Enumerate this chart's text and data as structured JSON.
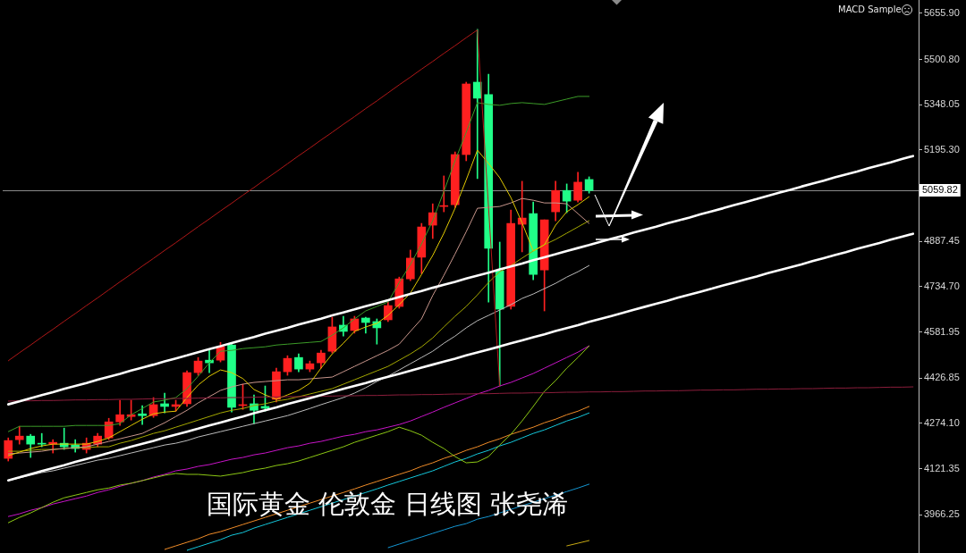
{
  "chart_data": {
    "type": "candlestick",
    "categories": [
      null,
      null,
      null,
      null,
      null,
      null,
      null,
      null,
      null,
      null,
      null,
      null,
      null,
      null,
      null,
      null,
      null,
      null,
      null,
      null,
      null,
      null,
      null,
      null,
      null,
      null,
      null,
      null,
      null,
      null,
      null,
      null,
      null,
      null,
      null,
      null,
      null,
      null,
      null,
      null,
      null,
      null,
      null,
      null,
      null,
      null,
      null,
      null,
      null,
      null,
      null,
      null,
      null,
      null,
      null,
      null,
      null,
      null,
      null,
      null,
      null,
      null,
      null,
      null,
      null,
      null,
      null,
      null,
      null,
      null,
      null,
      null,
      null,
      null,
      null,
      null,
      null,
      null,
      null,
      null,
      null,
      null
    ],
    "ohlc": [
      [
        4156,
        4225,
        4147,
        4216
      ],
      [
        4219,
        4264,
        4204,
        4231
      ],
      [
        4231,
        4237,
        4159,
        4204
      ],
      [
        4207,
        4240,
        4195,
        4204
      ],
      [
        4204,
        4219,
        4174,
        4210
      ],
      [
        4207,
        4258,
        4186,
        4195
      ],
      [
        4201,
        4219,
        4177,
        4189
      ],
      [
        4186,
        4225,
        4174,
        4207
      ],
      [
        4204,
        4240,
        4195,
        4231
      ],
      [
        4225,
        4291,
        4219,
        4279
      ],
      [
        4279,
        4352,
        4267,
        4303
      ],
      [
        4297,
        4352,
        4285,
        4303
      ],
      [
        4306,
        4334,
        4270,
        4300
      ],
      [
        4300,
        4361,
        4294,
        4337
      ],
      [
        4340,
        4376,
        4309,
        4331
      ],
      [
        4331,
        4352,
        4315,
        4337
      ],
      [
        4340,
        4451,
        4331,
        4445
      ],
      [
        4445,
        4496,
        4436,
        4484
      ],
      [
        4487,
        4520,
        4445,
        4478
      ],
      [
        4487,
        4547,
        4481,
        4532
      ],
      [
        4538,
        4544,
        4312,
        4328
      ],
      [
        4334,
        4406,
        4321,
        4337
      ],
      [
        4340,
        4370,
        4273,
        4318
      ],
      [
        4331,
        4400,
        4315,
        4325
      ],
      [
        4355,
        4460,
        4346,
        4448
      ],
      [
        4448,
        4502,
        4436,
        4493
      ],
      [
        4496,
        4508,
        4448,
        4457
      ],
      [
        4457,
        4484,
        4448,
        4475
      ],
      [
        4478,
        4520,
        4460,
        4511
      ],
      [
        4517,
        4632,
        4511,
        4599
      ],
      [
        4605,
        4635,
        4568,
        4584
      ],
      [
        4587,
        4635,
        4578,
        4626
      ],
      [
        4629,
        4632,
        4578,
        4614
      ],
      [
        4617,
        4626,
        4541,
        4596
      ],
      [
        4623,
        4683,
        4617,
        4671
      ],
      [
        4668,
        4767,
        4662,
        4761
      ],
      [
        4761,
        4858,
        4755,
        4831
      ],
      [
        4834,
        4948,
        4779,
        4936
      ],
      [
        4942,
        5014,
        4897,
        4984
      ],
      [
        5005,
        5108,
        4987,
        5008
      ],
      [
        5011,
        5189,
        5002,
        5180
      ],
      [
        5180,
        5424,
        5159,
        5418
      ],
      [
        5424,
        5602,
        5099,
        5370
      ],
      [
        5382,
        5451,
        4683,
        4864
      ],
      [
        4788,
        4885,
        4400,
        4659
      ],
      [
        4668,
        4993,
        4659,
        4948
      ],
      [
        4945,
        5090,
        4852,
        4966
      ],
      [
        4981,
        5020,
        4758,
        4776
      ],
      [
        4791,
        4960,
        4653,
        4960
      ],
      [
        4987,
        5090,
        4957,
        5059
      ],
      [
        5059,
        5081,
        4984,
        5023
      ],
      [
        5026,
        5120,
        5020,
        5087
      ],
      [
        5096,
        5105,
        5050,
        5059
      ],
      null,
      null,
      null,
      null,
      null,
      null,
      null,
      null,
      null,
      null,
      null,
      null,
      null,
      null,
      null,
      null,
      null,
      null,
      null,
      null,
      null,
      null,
      null,
      null,
      null,
      null,
      null,
      null,
      null
    ],
    "colors": [
      "#ff2020",
      "#ff2020",
      "#20ff88",
      "#20ff88",
      "#ff2020",
      "#20ff88",
      "#20ff88",
      "#ff2020",
      "#ff2020",
      "#ff2020",
      "#ff2020",
      "#ff2020",
      "#20ff88",
      "#ff2020",
      "#20ff88",
      "#ff2020",
      "#ff2020",
      "#ff2020",
      "#20ff88",
      "#ff2020",
      "#20ff88",
      "#ff2020",
      "#20ff88",
      "#20ff88",
      "#ff2020",
      "#ff2020",
      "#20ff88",
      "#ff2020",
      "#ff2020",
      "#ff2020",
      "#20ff88",
      "#ff2020",
      "#20ff88",
      "#20ff88",
      "#ff2020",
      "#ff2020",
      "#ff2020",
      "#ff2020",
      "#ff2020",
      "#ff2020",
      "#ff2020",
      "#ff2020",
      "#20ff88",
      "#20ff88",
      "#20ff88",
      "#ff2020",
      "#ff2020",
      "#20ff88",
      "#ff2020",
      "#ff2020",
      "#20ff88",
      "#ff2020",
      "#20ff88",
      null,
      null,
      null,
      null,
      null,
      null,
      null,
      null,
      null,
      null,
      null,
      null,
      null,
      null,
      null,
      null,
      null,
      null,
      null,
      null,
      null,
      null,
      null,
      null,
      null,
      null,
      null,
      null,
      null
    ],
    "series": [
      {
        "type": "line",
        "color": "#f08c28",
        "values": [
          null,
          null,
          null,
          null,
          null,
          null,
          null,
          null,
          null,
          null,
          null,
          null,
          null,
          null,
          3849,
          3861,
          3873,
          3885,
          3900,
          3909,
          3921,
          3933,
          3945,
          3957,
          3969,
          3981,
          3993,
          4005,
          4017,
          4029,
          4041,
          4053,
          4066,
          4078,
          4090,
          4102,
          4114,
          4129,
          4141,
          4156,
          4168,
          4183,
          4195,
          4210,
          4222,
          4237,
          4249,
          4261,
          4276,
          4288,
          4303,
          4315,
          4331,
          null,
          null,
          null,
          null,
          null,
          null,
          null,
          null,
          null,
          null,
          null,
          null,
          null,
          null,
          null,
          null,
          null,
          null,
          null,
          null,
          null,
          null,
          null,
          null,
          null,
          null,
          null,
          null,
          null
        ]
      },
      {
        "type": "line",
        "color": "#14c8dc",
        "values": [
          null,
          null,
          null,
          null,
          null,
          null,
          null,
          null,
          null,
          null,
          null,
          null,
          null,
          null,
          null,
          null,
          3846,
          3858,
          3870,
          3882,
          3897,
          3906,
          3921,
          3933,
          3945,
          3957,
          3969,
          3981,
          3993,
          4005,
          4017,
          4029,
          4041,
          4053,
          4066,
          4078,
          4090,
          4102,
          4114,
          4129,
          4144,
          4156,
          4171,
          4183,
          4198,
          4210,
          4225,
          4240,
          4252,
          4267,
          4282,
          4294,
          4309,
          null,
          null,
          null,
          null,
          null,
          null,
          null,
          null,
          null,
          null,
          null,
          null,
          null,
          null,
          null,
          null,
          null,
          null,
          null,
          null,
          null,
          null,
          null,
          null,
          null,
          null,
          null,
          null,
          null
        ]
      },
      {
        "type": "line",
        "color": "#1496d2",
        "values": [
          null,
          null,
          null,
          null,
          null,
          null,
          null,
          null,
          null,
          null,
          null,
          null,
          null,
          null,
          null,
          null,
          null,
          null,
          null,
          null,
          null,
          null,
          null,
          null,
          null,
          null,
          null,
          null,
          null,
          null,
          null,
          null,
          null,
          null,
          3855,
          3867,
          3879,
          3891,
          3903,
          3915,
          3927,
          3936,
          3951,
          3960,
          3972,
          3984,
          3996,
          4008,
          4020,
          4032,
          4044,
          4056,
          4069,
          null,
          null,
          null,
          null,
          null,
          null,
          null,
          null,
          null,
          null,
          null,
          null,
          null,
          null,
          null,
          null,
          null,
          null,
          null,
          null,
          null,
          null,
          null,
          null,
          null,
          null,
          null,
          null,
          null
        ]
      },
      {
        "type": "line",
        "color": "#c8aa14",
        "values": [
          null,
          null,
          null,
          null,
          null,
          null,
          null,
          null,
          null,
          null,
          null,
          null,
          null,
          null,
          null,
          null,
          null,
          null,
          null,
          null,
          null,
          null,
          null,
          null,
          null,
          null,
          null,
          null,
          null,
          null,
          null,
          null,
          null,
          null,
          null,
          null,
          null,
          null,
          null,
          null,
          null,
          null,
          null,
          null,
          null,
          null,
          null,
          null,
          null,
          null,
          3861,
          3870,
          3879,
          null,
          null,
          null,
          null,
          null,
          null,
          null,
          null,
          null,
          null,
          null,
          null,
          null,
          null,
          null,
          null,
          null,
          null,
          null,
          null,
          null,
          null,
          null,
          null,
          null,
          null,
          null,
          null,
          null
        ]
      },
      {
        "type": "line",
        "color": "#c814c8",
        "values": [
          3960,
          3969,
          3981,
          3990,
          4002,
          4011,
          4020,
          4029,
          4041,
          4050,
          4062,
          4072,
          4081,
          4093,
          4102,
          4114,
          4120,
          4129,
          4135,
          4144,
          4153,
          4159,
          4168,
          4174,
          4183,
          4192,
          4198,
          4207,
          4213,
          4222,
          4231,
          4237,
          4246,
          4252,
          4261,
          4270,
          4282,
          4297,
          4312,
          4328,
          4343,
          4358,
          4373,
          4385,
          4400,
          4412,
          4427,
          4442,
          4460,
          4478,
          4496,
          4514,
          4535,
          null,
          null,
          null,
          null,
          null,
          null,
          null,
          null,
          null,
          null,
          null,
          null,
          null,
          null,
          null,
          null,
          null,
          null,
          null,
          null,
          null,
          null,
          null,
          null,
          null,
          null,
          null,
          null,
          null
        ]
      },
      {
        "type": "line",
        "color": "#bcbcbc",
        "values": [
          4081,
          4090,
          4099,
          4108,
          4114,
          4123,
          4132,
          4141,
          4150,
          4156,
          4165,
          4174,
          4183,
          4192,
          4201,
          4207,
          4216,
          4228,
          4237,
          4246,
          4255,
          4264,
          4273,
          4282,
          4291,
          4300,
          4312,
          4324,
          4337,
          4349,
          4361,
          4376,
          4394,
          4415,
          4433,
          4454,
          4475,
          4496,
          4517,
          4544,
          4568,
          4596,
          4620,
          4638,
          4656,
          4674,
          4695,
          4710,
          4728,
          4746,
          4767,
          4785,
          4806,
          null,
          null,
          null,
          null,
          null,
          null,
          null,
          null,
          null,
          null,
          null,
          null,
          null,
          null,
          null,
          null,
          null,
          null,
          null,
          null,
          null,
          null,
          null,
          null,
          null,
          null,
          null,
          null,
          null
        ]
      },
      {
        "type": "line",
        "color": "#8cc814",
        "values": [
          3939,
          3957,
          3972,
          3990,
          4008,
          4023,
          4032,
          4041,
          4050,
          4056,
          4066,
          4072,
          4081,
          4090,
          4099,
          4105,
          4102,
          4102,
          4099,
          4096,
          4102,
          4108,
          4117,
          4123,
          4132,
          4138,
          4147,
          4159,
          4171,
          4183,
          4195,
          4210,
          4222,
          4234,
          4246,
          4261,
          4249,
          4234,
          4210,
          4189,
          4162,
          4141,
          4144,
          4162,
          4201,
          4237,
          4282,
          4331,
          4382,
          4418,
          4460,
          4496,
          4535,
          null,
          null,
          null,
          null,
          null,
          null,
          null,
          null,
          null,
          null,
          null,
          null,
          null,
          null,
          null,
          null,
          null,
          null,
          null,
          null,
          null,
          null,
          null,
          null,
          null,
          null,
          null,
          null,
          null
        ]
      },
      {
        "type": "line",
        "color": "#3c9c28",
        "values": [
          4246,
          4264,
          4264,
          4264,
          4264,
          4264,
          4267,
          4267,
          4267,
          4267,
          4273,
          4303,
          4324,
          4346,
          4352,
          4361,
          4391,
          4433,
          4478,
          4517,
          4520,
          4526,
          4529,
          4532,
          4538,
          4541,
          4544,
          4547,
          4550,
          4571,
          4596,
          4626,
          4653,
          4668,
          4683,
          4749,
          4809,
          4879,
          4957,
          5056,
          5159,
          5255,
          5355,
          5349,
          5346,
          5352,
          5355,
          5352,
          5349,
          5358,
          5367,
          5376,
          5376,
          null,
          null,
          null,
          null,
          null,
          null,
          null,
          null,
          null,
          null,
          null,
          null,
          null,
          null,
          null,
          null,
          null,
          null,
          null,
          null,
          null,
          null,
          null,
          null,
          null,
          null,
          null,
          null,
          null
        ]
      },
      {
        "type": "line",
        "color": "#a4a800",
        "values": [
          4180,
          4180,
          4183,
          4186,
          4186,
          4189,
          4192,
          4192,
          4195,
          4195,
          4207,
          4216,
          4228,
          4240,
          4249,
          4261,
          4273,
          4285,
          4297,
          4309,
          4318,
          4324,
          4334,
          4340,
          4349,
          4355,
          4364,
          4373,
          4382,
          4391,
          4406,
          4421,
          4436,
          4451,
          4466,
          4487,
          4508,
          4532,
          4562,
          4599,
          4635,
          4668,
          4707,
          4749,
          4785,
          4806,
          4831,
          4855,
          4876,
          4894,
          4915,
          4936,
          4957,
          null,
          null,
          null,
          null,
          null,
          null,
          null,
          null,
          null,
          null,
          null,
          null,
          null,
          null,
          null,
          null,
          null,
          null,
          null,
          null,
          null,
          null,
          null,
          null,
          null,
          null,
          null,
          null,
          null
        ]
      },
      {
        "type": "line",
        "color": "#c8968c",
        "values": [
          4171,
          4174,
          4177,
          4180,
          4186,
          4189,
          4192,
          4195,
          4204,
          4213,
          4222,
          4231,
          4240,
          4258,
          4276,
          4297,
          4318,
          4343,
          4364,
          4385,
          4397,
          4406,
          4412,
          4415,
          4418,
          4421,
          4421,
          4424,
          4427,
          4430,
          4448,
          4466,
          4484,
          4502,
          4520,
          4541,
          4584,
          4626,
          4705,
          4773,
          4845,
          4920,
          4999,
          5002,
          5005,
          5017,
          5032,
          5026,
          5017,
          5017,
          5014,
          4981,
          4948,
          null,
          null,
          null,
          null,
          null,
          null,
          null,
          null,
          null,
          null,
          null,
          null,
          null,
          null,
          null,
          null,
          null,
          null,
          null,
          null,
          null,
          null,
          null,
          null,
          null,
          null,
          null,
          null,
          null
        ]
      },
      {
        "type": "line",
        "color": "#e0c800",
        "values": [
          4165,
          4177,
          4189,
          4198,
          4204,
          4204,
          4204,
          4204,
          4213,
          4225,
          4246,
          4267,
          4288,
          4306,
          4312,
          4315,
          4361,
          4403,
          4433,
          4454,
          4445,
          4425,
          4388,
          4370,
          4355,
          4370,
          4385,
          4409,
          4460,
          4508,
          4544,
          4584,
          4599,
          4611,
          4638,
          4674,
          4713,
          4776,
          4840,
          4915,
          4999,
          5095,
          5195,
          5150,
          5102,
          5035,
          4950,
          4855,
          4876,
          4942,
          4987,
          5011,
          5038,
          null,
          null,
          null,
          null,
          null,
          null,
          null,
          null,
          null,
          null,
          null,
          null,
          null,
          null,
          null,
          null,
          null,
          null,
          null,
          null,
          null,
          null,
          null,
          null,
          null,
          null,
          null,
          null,
          null
        ]
      },
      {
        "type": "line",
        "color": "#8c1e3c",
        "values": [
          4349,
          4350,
          4350,
          4351,
          4351,
          4352,
          4353,
          4353,
          4354,
          4354,
          4355,
          4355,
          4356,
          4357,
          4357,
          4358,
          4358,
          4359,
          4360,
          4360,
          4361,
          4361,
          4362,
          4363,
          4363,
          4364,
          4364,
          4365,
          4366,
          4366,
          4367,
          4367,
          4368,
          4368,
          4369,
          4370,
          4370,
          4371,
          4371,
          4372,
          4373,
          4373,
          4374,
          4374,
          4375,
          4376,
          4376,
          4377,
          4377,
          4378,
          4379,
          4379,
          4380,
          4380,
          4381,
          4381,
          4382,
          4383,
          4383,
          4384,
          4384,
          4385,
          4386,
          4386,
          4387,
          4387,
          4388,
          4389,
          4389,
          4390,
          4390,
          4391,
          4391,
          4392,
          4393,
          4393,
          4394,
          4394,
          4395,
          4396,
          4396,
          4397
        ]
      },
      {
        "type": "line",
        "color": "#b01818",
        "values": [
          4485,
          4512,
          4538,
          4565,
          4591,
          4618,
          4644,
          4671,
          4697,
          4724,
          4751,
          4777,
          4804,
          4830,
          4857,
          4883,
          4910,
          4937,
          4963,
          4990,
          5016,
          5043,
          5069,
          5096,
          5122,
          5149,
          5176,
          5202,
          5229,
          5255,
          5282,
          5308,
          5335,
          5361,
          5388,
          5415,
          5441,
          5468,
          5494,
          5521,
          5547,
          5574,
          5600,
          5000,
          4400,
          null,
          null,
          null,
          null,
          null,
          null,
          null,
          null,
          null,
          null,
          null,
          null,
          null,
          null,
          null,
          null,
          null,
          null,
          null,
          null,
          null,
          null,
          null,
          null,
          null,
          null,
          null,
          null,
          null,
          null,
          null,
          null,
          null,
          null,
          null,
          null,
          null
        ]
      },
      {
        "type": "line",
        "color": "#ffffff",
        "values": [
          4338,
          4348,
          4359,
          4369,
          4379,
          4390,
          4400,
          4410,
          4421,
          4431,
          4441,
          4452,
          4462,
          4472,
          4483,
          4493,
          4503,
          4514,
          4524,
          4534,
          4545,
          4555,
          4565,
          4576,
          4586,
          4596,
          4607,
          4617,
          4627,
          4638,
          4648,
          4658,
          4669,
          4679,
          4689,
          4700,
          4710,
          4720,
          4731,
          4741,
          4751,
          4762,
          4772,
          4782,
          4793,
          4803,
          4813,
          4824,
          4834,
          4844,
          4855,
          4865,
          4875,
          4886,
          4896,
          4906,
          4917,
          4927,
          4937,
          4948,
          4958,
          4968,
          4979,
          4989,
          4999,
          5010,
          5020,
          5030,
          5041,
          5051,
          5061,
          5072,
          5082,
          5092,
          5103,
          5113,
          5123,
          5134,
          5144,
          5154,
          5165,
          5175
        ]
      },
      {
        "type": "line",
        "color": "#ffffff",
        "values": [
          4082,
          4092,
          4103,
          4113,
          4123,
          4133,
          4144,
          4154,
          4164,
          4174,
          4185,
          4195,
          4205,
          4215,
          4226,
          4236,
          4246,
          4256,
          4267,
          4277,
          4287,
          4297,
          4308,
          4318,
          4328,
          4339,
          4349,
          4359,
          4369,
          4380,
          4390,
          4400,
          4410,
          4421,
          4431,
          4441,
          4451,
          4462,
          4472,
          4482,
          4492,
          4503,
          4513,
          4523,
          4533,
          4544,
          4554,
          4564,
          4574,
          4585,
          4595,
          4605,
          4616,
          4626,
          4636,
          4646,
          4657,
          4667,
          4677,
          4687,
          4698,
          4708,
          4718,
          4728,
          4739,
          4749,
          4759,
          4769,
          4780,
          4790,
          4800,
          4810,
          4821,
          4831,
          4841,
          4851,
          4862,
          4872,
          4882,
          4893,
          4903,
          4913
        ]
      }
    ],
    "ylim": [
      3837,
      5701
    ],
    "yticks": [
      {
        "value": 5655.9,
        "label": "5655.90"
      },
      {
        "value": 5500.8,
        "label": "5500.80"
      },
      5348.05,
      {
        "value": 5195.3,
        "label": "5195.30"
      },
      4887.45,
      {
        "value": 4734.7,
        "label": "4734.70"
      },
      4581.95,
      4426.85,
      {
        "value": 4274.1,
        "label": "4274.10"
      },
      4121.35,
      3966.25
    ],
    "tick_labels": "y",
    "ref_lines": [
      {
        "axis": "y",
        "value": 5059.82,
        "label": "5059.82",
        "color": "#8a8a8a"
      }
    ],
    "annotations": [
      "国际黄金 伦敦金 日线图 张尧浠",
      "MACD Sample"
    ]
  }
}
